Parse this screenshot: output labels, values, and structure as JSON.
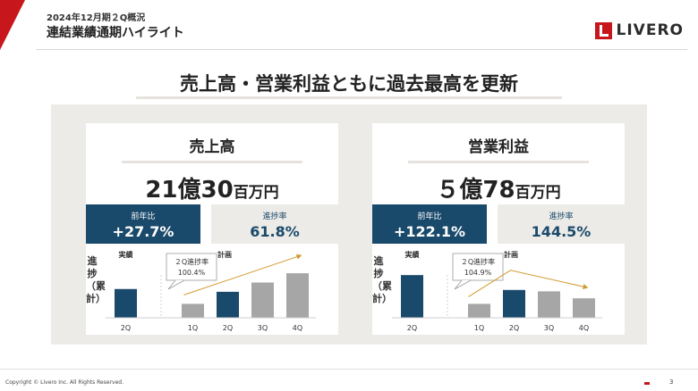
{
  "header": {
    "subtitle": "2024年12月期２Q概況",
    "title": "連結業績通期ハイライト",
    "logo_text": "LIVERO",
    "accent_color": "#c8161d"
  },
  "headline": "売上高・営業利益ともに過去最高を更新",
  "cards": [
    {
      "title": "売上高",
      "value_number": "21億30",
      "value_unit": "百万円",
      "kpi_yoy": {
        "label": "前年比",
        "value": "+27.7%"
      },
      "kpi_progress": {
        "label": "進捗率",
        "value": "61.8%"
      },
      "chart_vertical_label": "進捗（累計）",
      "actual_label": "実績",
      "plan_label": "計画",
      "callout": {
        "line1": "２Q進捗率",
        "line2": "100.4%"
      }
    },
    {
      "title": "営業利益",
      "value_number": "５億78",
      "value_unit": "百万円",
      "kpi_yoy": {
        "label": "前年比",
        "value": "+122.1%"
      },
      "kpi_progress": {
        "label": "進捗率",
        "value": "144.5%"
      },
      "chart_vertical_label": "進捗（累計）",
      "actual_label": "実績",
      "plan_label": "計画",
      "callout": {
        "line1": "２Q進捗率",
        "line2": "104.9%"
      }
    }
  ],
  "chart_data": [
    {
      "type": "bar",
      "categories": [
        "2Q",
        "1Q",
        "2Q",
        "3Q",
        "4Q"
      ],
      "groups": [
        "実績",
        "計画",
        "計画",
        "計画",
        "計画"
      ],
      "values": [
        0.62,
        0.3,
        0.56,
        0.76,
        0.96
      ],
      "colors": [
        "#1a4a6b",
        "#a6a6a6",
        "#1a4a6b",
        "#a6a6a6",
        "#a6a6a6"
      ],
      "trend": "up"
    },
    {
      "type": "bar",
      "categories": [
        "2Q",
        "1Q",
        "2Q",
        "3Q",
        "4Q"
      ],
      "groups": [
        "実績",
        "計画",
        "計画",
        "計画",
        "計画"
      ],
      "values": [
        0.92,
        0.3,
        0.6,
        0.57,
        0.42
      ],
      "colors": [
        "#1a4a6b",
        "#a6a6a6",
        "#1a4a6b",
        "#a6a6a6",
        "#a6a6a6"
      ],
      "trend": "peak"
    }
  ],
  "footer": {
    "copyright": "Copyright © Livero Inc. All Rights Reserved.",
    "page_number": "3"
  }
}
